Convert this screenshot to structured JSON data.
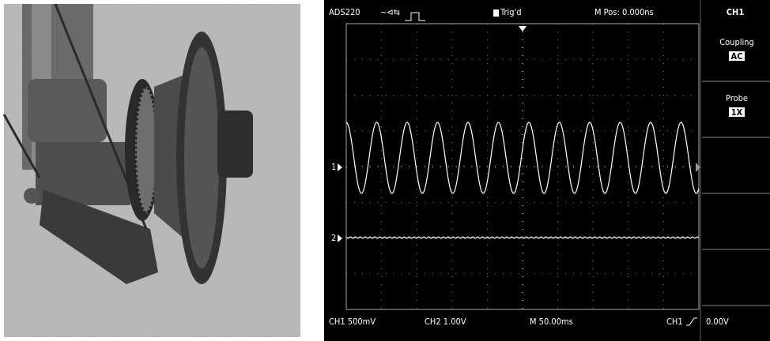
{
  "scope": {
    "header": {
      "model": "ADS220",
      "trigger": "Trig'd",
      "position": "M Pos: 0.000ns",
      "channel": "CH1"
    },
    "menu": [
      {
        "label": "Coupling",
        "value": "AC"
      },
      {
        "label": "Probe",
        "value": "1X"
      }
    ],
    "markers": [
      "1",
      "2"
    ],
    "footer": {
      "ch1": "CH1 500mV",
      "ch2": "CH2 1.00V",
      "timebase": "M 50.00ms",
      "trigger_source": "CH1",
      "trigger_level": "0.00V"
    }
  }
}
